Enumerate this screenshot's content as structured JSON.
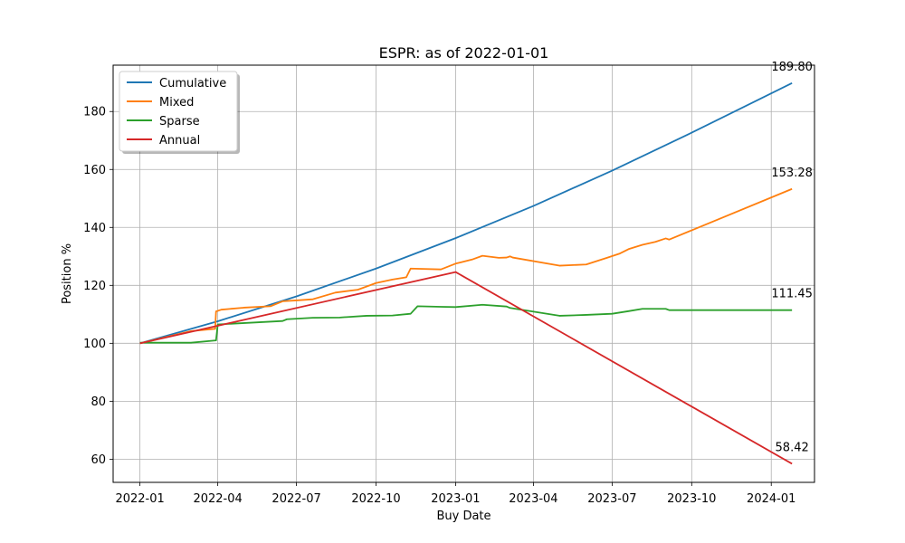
{
  "chart_data": {
    "type": "line",
    "title": "ESPR: as of 2022-01-01",
    "xlabel": "Buy Date",
    "ylabel": "Position %",
    "xlim": [
      "2021-12-01",
      "2024-02-20"
    ],
    "ylim": [
      52,
      196
    ],
    "x_ticks": [
      "2022-01",
      "2022-04",
      "2022-07",
      "2022-10",
      "2023-01",
      "2023-04",
      "2023-07",
      "2023-10",
      "2024-01"
    ],
    "y_ticks": [
      60,
      80,
      100,
      120,
      140,
      160,
      180
    ],
    "grid": true,
    "legend_position": "top-left",
    "series": [
      {
        "name": "Cumulative",
        "color": "#1f77b4",
        "end_label": "189.80",
        "points": [
          [
            "2022-01-01",
            100
          ],
          [
            "2022-04-01",
            107.6
          ],
          [
            "2022-07-01",
            116.2
          ],
          [
            "2022-10-01",
            125.8
          ],
          [
            "2023-01-01",
            136.3
          ],
          [
            "2023-04-01",
            147.4
          ],
          [
            "2023-07-01",
            159.6
          ],
          [
            "2023-10-01",
            172.7
          ],
          [
            "2024-01-25",
            189.8
          ]
        ]
      },
      {
        "name": "Mixed",
        "color": "#ff7f0e",
        "end_label": "153.28",
        "points": [
          [
            "2022-01-01",
            100
          ],
          [
            "2022-03-01",
            104.2
          ],
          [
            "2022-03-29",
            105
          ],
          [
            "2022-03-30",
            111
          ],
          [
            "2022-04-05",
            111.6
          ],
          [
            "2022-05-01",
            112.3
          ],
          [
            "2022-06-01",
            112.8
          ],
          [
            "2022-06-15",
            114.5
          ],
          [
            "2022-07-01",
            114.8
          ],
          [
            "2022-07-20",
            115.2
          ],
          [
            "2022-08-15",
            117.5
          ],
          [
            "2022-09-10",
            118.5
          ],
          [
            "2022-10-01",
            120.8
          ],
          [
            "2022-10-20",
            122
          ],
          [
            "2022-11-05",
            122.8
          ],
          [
            "2022-11-10",
            125.8
          ],
          [
            "2022-12-15",
            125.5
          ],
          [
            "2023-01-01",
            127.5
          ],
          [
            "2023-01-20",
            128.9
          ],
          [
            "2023-02-01",
            130.2
          ],
          [
            "2023-02-20",
            129.5
          ],
          [
            "2023-03-01",
            129.6
          ],
          [
            "2023-03-05",
            130
          ],
          [
            "2023-03-08",
            129.6
          ],
          [
            "2023-05-01",
            126.8
          ],
          [
            "2023-06-01",
            127.2
          ],
          [
            "2023-06-25",
            129.5
          ],
          [
            "2023-07-10",
            131
          ],
          [
            "2023-07-20",
            132.5
          ],
          [
            "2023-08-05",
            134
          ],
          [
            "2023-08-20",
            135
          ],
          [
            "2023-09-01",
            136.2
          ],
          [
            "2023-09-05",
            135.8
          ],
          [
            "2024-01-25",
            153.28
          ]
        ]
      },
      {
        "name": "Sparse",
        "color": "#2ca02c",
        "end_label": "111.45",
        "points": [
          [
            "2022-01-01",
            100.2
          ],
          [
            "2022-03-01",
            100.2
          ],
          [
            "2022-03-30",
            101
          ],
          [
            "2022-04-01",
            106.5
          ],
          [
            "2022-06-15",
            107.7
          ],
          [
            "2022-06-20",
            108.3
          ],
          [
            "2022-07-20",
            108.8
          ],
          [
            "2022-08-20",
            108.9
          ],
          [
            "2022-09-20",
            109.5
          ],
          [
            "2022-10-20",
            109.6
          ],
          [
            "2022-11-10",
            110.2
          ],
          [
            "2022-11-18",
            112.8
          ],
          [
            "2022-12-15",
            112.6
          ],
          [
            "2023-01-01",
            112.5
          ],
          [
            "2023-02-01",
            113.3
          ],
          [
            "2023-03-01",
            112.7
          ],
          [
            "2023-03-05",
            112.2
          ],
          [
            "2023-05-01",
            109.5
          ],
          [
            "2023-06-01",
            109.8
          ],
          [
            "2023-07-01",
            110.2
          ],
          [
            "2023-07-20",
            111.1
          ],
          [
            "2023-08-05",
            111.9
          ],
          [
            "2023-09-01",
            111.9
          ],
          [
            "2023-09-05",
            111.45
          ],
          [
            "2024-01-25",
            111.45
          ]
        ]
      },
      {
        "name": "Annual",
        "color": "#d62728",
        "end_label": "58.42",
        "points": [
          [
            "2022-01-01",
            100
          ],
          [
            "2023-01-01",
            124.6
          ],
          [
            "2024-01-25",
            58.42
          ]
        ]
      }
    ]
  }
}
